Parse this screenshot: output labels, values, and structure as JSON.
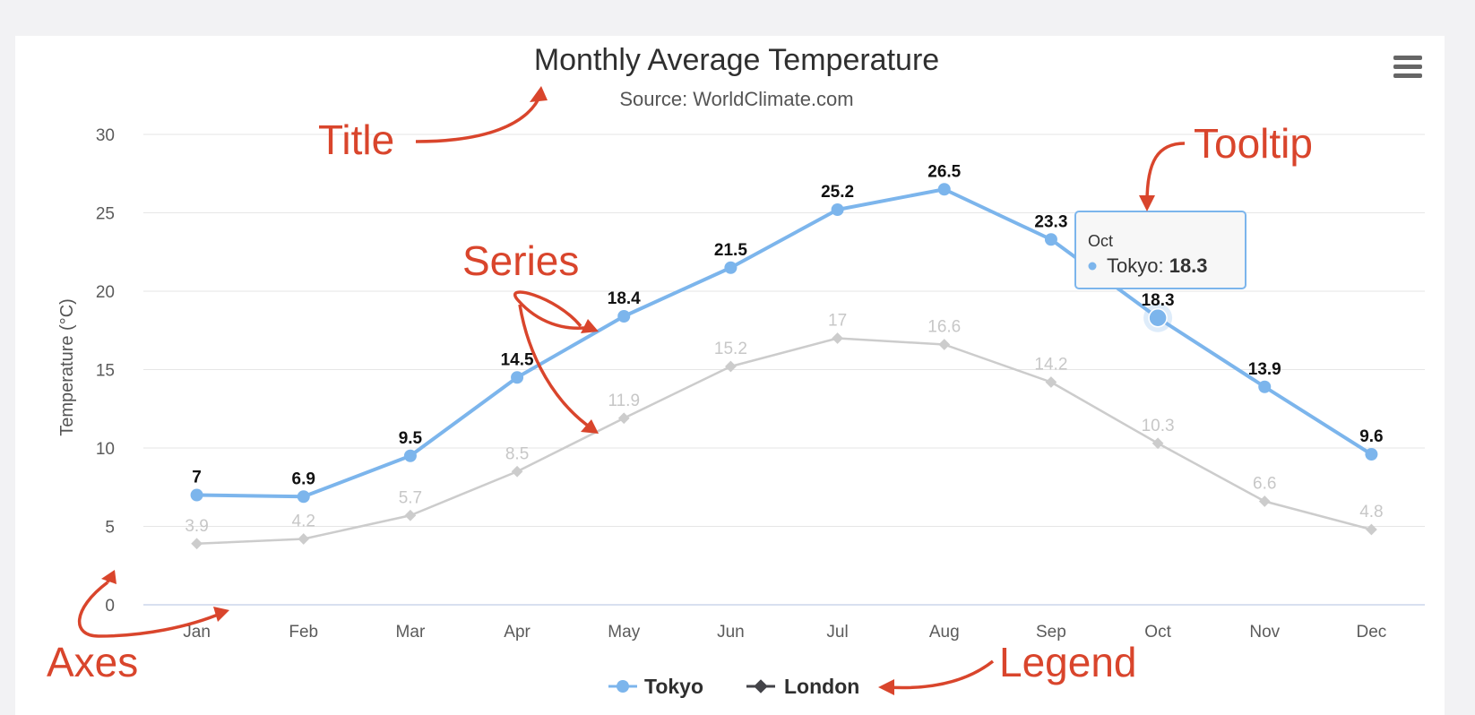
{
  "chart_data": {
    "type": "line",
    "title": "Monthly Average Temperature",
    "subtitle": "Source: WorldClimate.com",
    "ylabel": "Temperature (°C)",
    "xlabel": "",
    "categories": [
      "Jan",
      "Feb",
      "Mar",
      "Apr",
      "May",
      "Jun",
      "Jul",
      "Aug",
      "Sep",
      "Oct",
      "Nov",
      "Dec"
    ],
    "ylim": [
      0,
      30
    ],
    "yticks": [
      0,
      5,
      10,
      15,
      20,
      25,
      30
    ],
    "grid": true,
    "legend_position": "bottom-center",
    "series": [
      {
        "name": "Tokyo",
        "color": "#7cb5ec",
        "marker": "circle",
        "values": [
          7,
          6.9,
          9.5,
          14.5,
          18.4,
          21.5,
          25.2,
          26.5,
          23.3,
          18.3,
          13.9,
          9.6
        ]
      },
      {
        "name": "London",
        "color": "#cccccc",
        "legend_color": "#434348",
        "marker": "diamond",
        "values": [
          3.9,
          4.2,
          5.7,
          8.5,
          11.9,
          15.2,
          17,
          16.6,
          14.2,
          10.3,
          6.6,
          4.8
        ]
      }
    ],
    "tooltip": {
      "category": "Oct",
      "series": "Tokyo",
      "label": "Tokyo: ",
      "value": "18.3"
    }
  },
  "annotations": {
    "title": "Title",
    "series": "Series",
    "tooltip": "Tooltip",
    "axes": "Axes",
    "legend": "Legend"
  },
  "icons": {
    "menu": "hamburger-menu-icon"
  }
}
